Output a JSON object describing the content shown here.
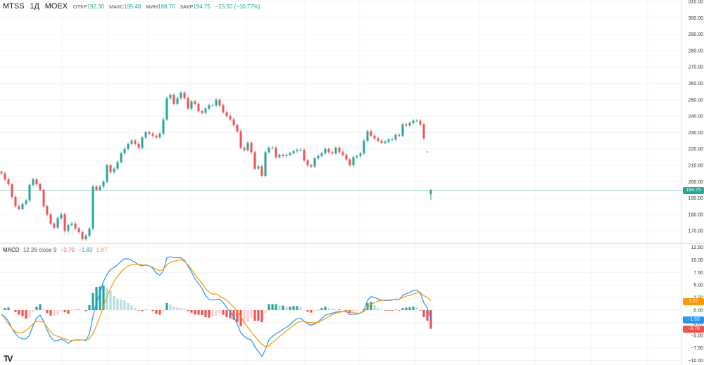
{
  "header": {
    "symbol": "MTSS",
    "interval": "1Д",
    "exchange": "MOEX",
    "open_label": "ОТКР",
    "open": "192.30",
    "high_label": "МАКС",
    "high": "195.40",
    "low_label": "МИН",
    "low": "188.70",
    "close_label": "ЗАКР",
    "close": "194.75",
    "change": "−23.50 (−10.77%)"
  },
  "macd_legend": {
    "title": "MACD",
    "params": "12 26 close 9",
    "histogram": "−3.70",
    "macd": "−1.83",
    "signal": "1.87"
  },
  "axis_badges": {
    "price": "194.75",
    "signal": "1.87",
    "macd": "−1.83",
    "histogram": "−3.70"
  },
  "colors": {
    "up": "#26a69a",
    "down": "#ef5350",
    "up_light": "#b2dfdb",
    "down_light": "#ffcdd2",
    "macd": "#2196f3",
    "signal": "#ff9800",
    "grid": "#f0f3fa",
    "text": "#131722"
  },
  "logo": "TV",
  "chart_data": [
    {
      "type": "candlestick",
      "title": "",
      "price_axis_ticks": [
        "310.00",
        "300.00",
        "290.00",
        "280.00",
        "270.00",
        "260.00",
        "250.00",
        "240.00",
        "230.00",
        "220.00",
        "210.00",
        "200.00",
        "190.00",
        "180.00",
        "170.00"
      ],
      "ylim": [
        165,
        310
      ],
      "grid": true,
      "last_price_line": 194.75,
      "last_bar": {
        "open": 192.3,
        "high": 195.4,
        "low": 188.7,
        "close": 194.75
      },
      "close": [
        205,
        201.4,
        198.4,
        190.7,
        185,
        183.4,
        186.4,
        188.5,
        198,
        201.4,
        198.4,
        195,
        185,
        180,
        174.4,
        172,
        177.7,
        180,
        170,
        173.5,
        174.4,
        171.4,
        169.2,
        165,
        167,
        171.4,
        197,
        195,
        197,
        200,
        210,
        205.8,
        208,
        212,
        217.3,
        220,
        223,
        225,
        223,
        220.7,
        227,
        230.2,
        229.3,
        228,
        227,
        229.3,
        238,
        250.9,
        253,
        247.4,
        251,
        254.3,
        251,
        244.6,
        248.9,
        247.4,
        243,
        242,
        244.6,
        246.6,
        246.6,
        250,
        246.6,
        242.4,
        240,
        238,
        234.5,
        230.7,
        220.7,
        219.3,
        223.7,
        218,
        208,
        209.3,
        203.6,
        218,
        220.7,
        220.7,
        215,
        216.4,
        215.7,
        216.4,
        217.3,
        218.6,
        219.4,
        219.4,
        213,
        210,
        209.3,
        214.3,
        215.7,
        217.3,
        220,
        218,
        217.3,
        220.7,
        218,
        216.4,
        213.6,
        210,
        215,
        215.7,
        217.3,
        225,
        230.7,
        228,
        226.4,
        225,
        223.7,
        224.3,
        225.7,
        225.7,
        228.6,
        228,
        235,
        234.3,
        235.8,
        237.2,
        237.2,
        235,
        226.4,
        218.25,
        194.75
      ]
    },
    {
      "type": "line",
      "title": "MACD 12 26 close 9",
      "axis_ticks": [
        "12.50",
        "10.00",
        "7.50",
        "5.00",
        "2.50",
        "0.00",
        "−2.50",
        "−5.00",
        "−7.50",
        "−10.00"
      ],
      "ylim": [
        -10,
        12.5
      ],
      "series": [
        {
          "name": "MACD",
          "values": [
            -0.8,
            -1.3,
            -2.2,
            -3.6,
            -4.7,
            -5.4,
            -5.7,
            -5.7,
            -5.0,
            -3.1,
            -1.5,
            -1.0,
            -2.2,
            -4.0,
            -5.4,
            -6.1,
            -6.1,
            -5.7,
            -6.1,
            -6.6,
            -6.1,
            -5.9,
            -5.9,
            -5.9,
            -6.1,
            -4.7,
            -1.3,
            1.5,
            3.4,
            5.7,
            7.1,
            8.1,
            8.5,
            9.0,
            9.7,
            10.2,
            10.2,
            9.9,
            9.5,
            9.0,
            8.8,
            9.0,
            8.8,
            8.3,
            7.4,
            6.9,
            7.8,
            10.4,
            10.6,
            10.4,
            10.4,
            10.4,
            9.9,
            8.8,
            7.6,
            6.2,
            5.3,
            4.3,
            2.9,
            2.1,
            2.0,
            2.1,
            2.2,
            1.5,
            0.6,
            -0.3,
            -1.3,
            -2.7,
            -4.5,
            -5.2,
            -5.7,
            -5.9,
            -7.3,
            -8.2,
            -9.2,
            -7.8,
            -5.9,
            -5.2,
            -4.7,
            -4.3,
            -3.8,
            -3.4,
            -2.9,
            -2.2,
            -1.7,
            -1.6,
            -2.2,
            -2.7,
            -3.0,
            -2.7,
            -2.3,
            -1.7,
            -1.0,
            -0.8,
            -0.6,
            -0.4,
            -0.3,
            -0.2,
            -0.3,
            -0.9,
            -0.8,
            -0.8,
            -0.6,
            -0.1,
            2.0,
            2.7,
            2.5,
            2.2,
            2.0,
            1.9,
            1.9,
            2.0,
            2.2,
            2.1,
            2.9,
            3.3,
            3.5,
            3.9,
            4.0,
            3.4,
            1.5,
            0.4,
            -1.83
          ]
        },
        {
          "name": "Signal",
          "values": [
            -0.8,
            -1.7,
            -2.7,
            -3.6,
            -4.3,
            -4.5,
            -4.5,
            -4.0,
            -3.4,
            -2.7,
            -2.2,
            -2.2,
            -2.4,
            -3.4,
            -4.3,
            -5.0,
            -5.2,
            -5.4,
            -5.7,
            -5.9,
            -6.0,
            -6.0,
            -6.0,
            -5.9,
            -5.9,
            -5.7,
            -4.7,
            -3.1,
            -1.3,
            0.8,
            2.7,
            4.3,
            5.7,
            6.7,
            7.6,
            8.3,
            8.8,
            9.0,
            9.1,
            9.1,
            9.0,
            8.9,
            8.8,
            8.5,
            8.1,
            7.8,
            8.1,
            9.0,
            9.5,
            9.7,
            9.9,
            10.0,
            9.7,
            9.0,
            8.1,
            7.1,
            6.2,
            5.3,
            4.3,
            3.6,
            3.2,
            3.2,
            2.8,
            2.4,
            2.0,
            1.3,
            0.6,
            -0.3,
            -1.3,
            -2.4,
            -3.4,
            -4.3,
            -5.2,
            -6.1,
            -6.8,
            -7.2,
            -7.1,
            -6.4,
            -5.9,
            -5.2,
            -4.7,
            -4.1,
            -3.6,
            -3.0,
            -2.5,
            -2.2,
            -2.2,
            -2.4,
            -2.5,
            -2.5,
            -2.4,
            -2.1,
            -1.7,
            -1.3,
            -0.9,
            -0.6,
            -0.5,
            -0.2,
            -0.1,
            -0.3,
            -0.5,
            -0.6,
            -0.6,
            -0.3,
            0.6,
            1.1,
            1.5,
            1.8,
            1.9,
            2.0,
            2.0,
            2.1,
            2.1,
            2.2,
            2.5,
            2.8,
            2.9,
            3.2,
            3.4,
            3.5,
            2.9,
            2.5,
            1.87
          ]
        }
      ],
      "histogram_last": -3.7
    }
  ]
}
